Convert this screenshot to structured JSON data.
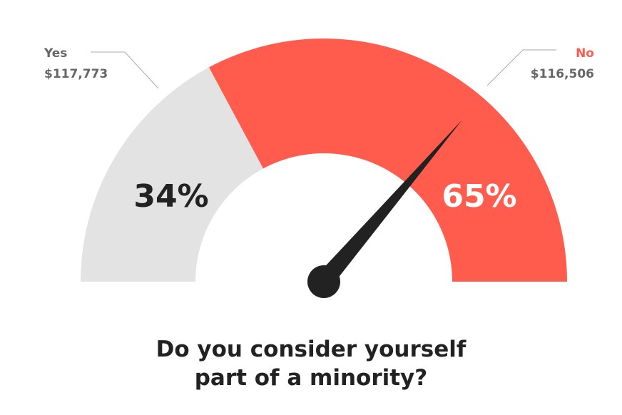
{
  "chart_data": {
    "type": "gauge",
    "title": "Do you consider yourself part of a minority?",
    "categories": [
      "Yes",
      "No"
    ],
    "values": [
      34,
      65
    ],
    "value_labels": [
      "34%",
      "65%"
    ],
    "totals": [
      "$117,773",
      "$116,506"
    ],
    "colors": [
      "#e3e3e3",
      "#ff5c4d"
    ],
    "label_colors": [
      "#666666",
      "#ff5c4d"
    ],
    "value_label_colors": [
      "#222222",
      "#ffffff"
    ]
  }
}
